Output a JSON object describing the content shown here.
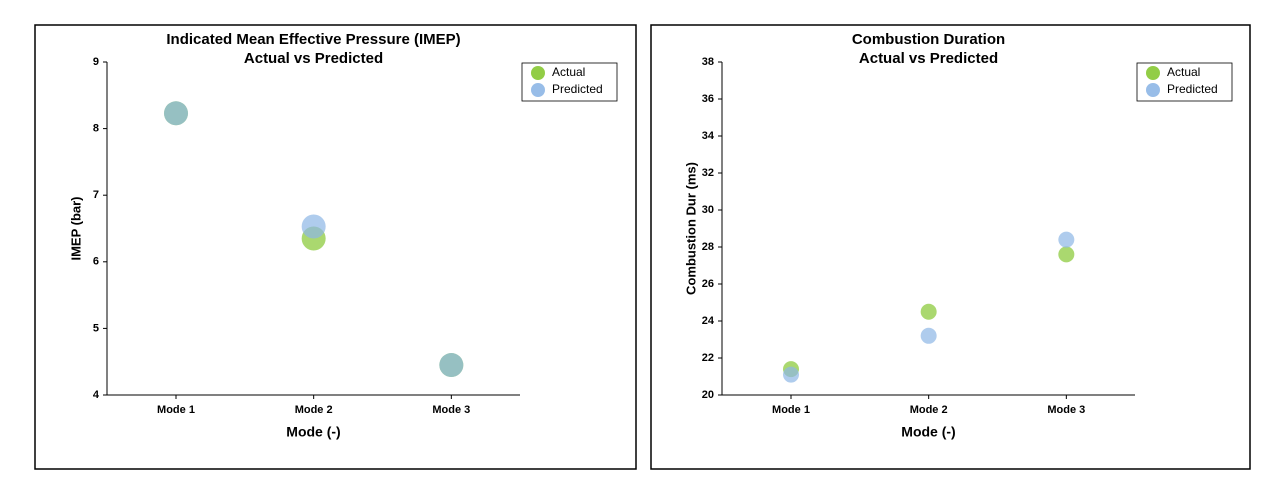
{
  "chart_data": [
    {
      "type": "scatter",
      "title": "Indicated Mean Effective Pressure (IMEP)",
      "subtitle": "Actual vs Predicted",
      "x_label": "Mode (-)",
      "y_label": "IMEP (bar)",
      "categories": [
        "Mode 1",
        "Mode 2",
        "Mode 3"
      ],
      "series": [
        {
          "name": "Actual",
          "color": "#86c832",
          "values": [
            8.23,
            6.35,
            4.45
          ]
        },
        {
          "name": "Predicted",
          "color": "#8db6e6",
          "values": [
            8.23,
            6.53,
            4.45
          ]
        }
      ],
      "ylim": [
        4,
        9
      ],
      "yticks": [
        4,
        5,
        6,
        7,
        8,
        9
      ],
      "legend": "upper right"
    },
    {
      "type": "scatter",
      "title": "Combustion Duration",
      "subtitle": "Actual vs Predicted",
      "x_label": "Mode (-)",
      "y_label": "Combustion Dur (ms)",
      "categories": [
        "Mode 1",
        "Mode 2",
        "Mode 3"
      ],
      "series": [
        {
          "name": "Actual",
          "color": "#86c832",
          "values": [
            21.4,
            24.5,
            27.6
          ]
        },
        {
          "name": "Predicted",
          "color": "#8db6e6",
          "values": [
            21.1,
            23.2,
            28.4
          ]
        }
      ],
      "ylim": [
        20,
        38
      ],
      "yticks": [
        20,
        22,
        24,
        26,
        28,
        30,
        32,
        34,
        36,
        38
      ],
      "legend": "upper right"
    }
  ]
}
